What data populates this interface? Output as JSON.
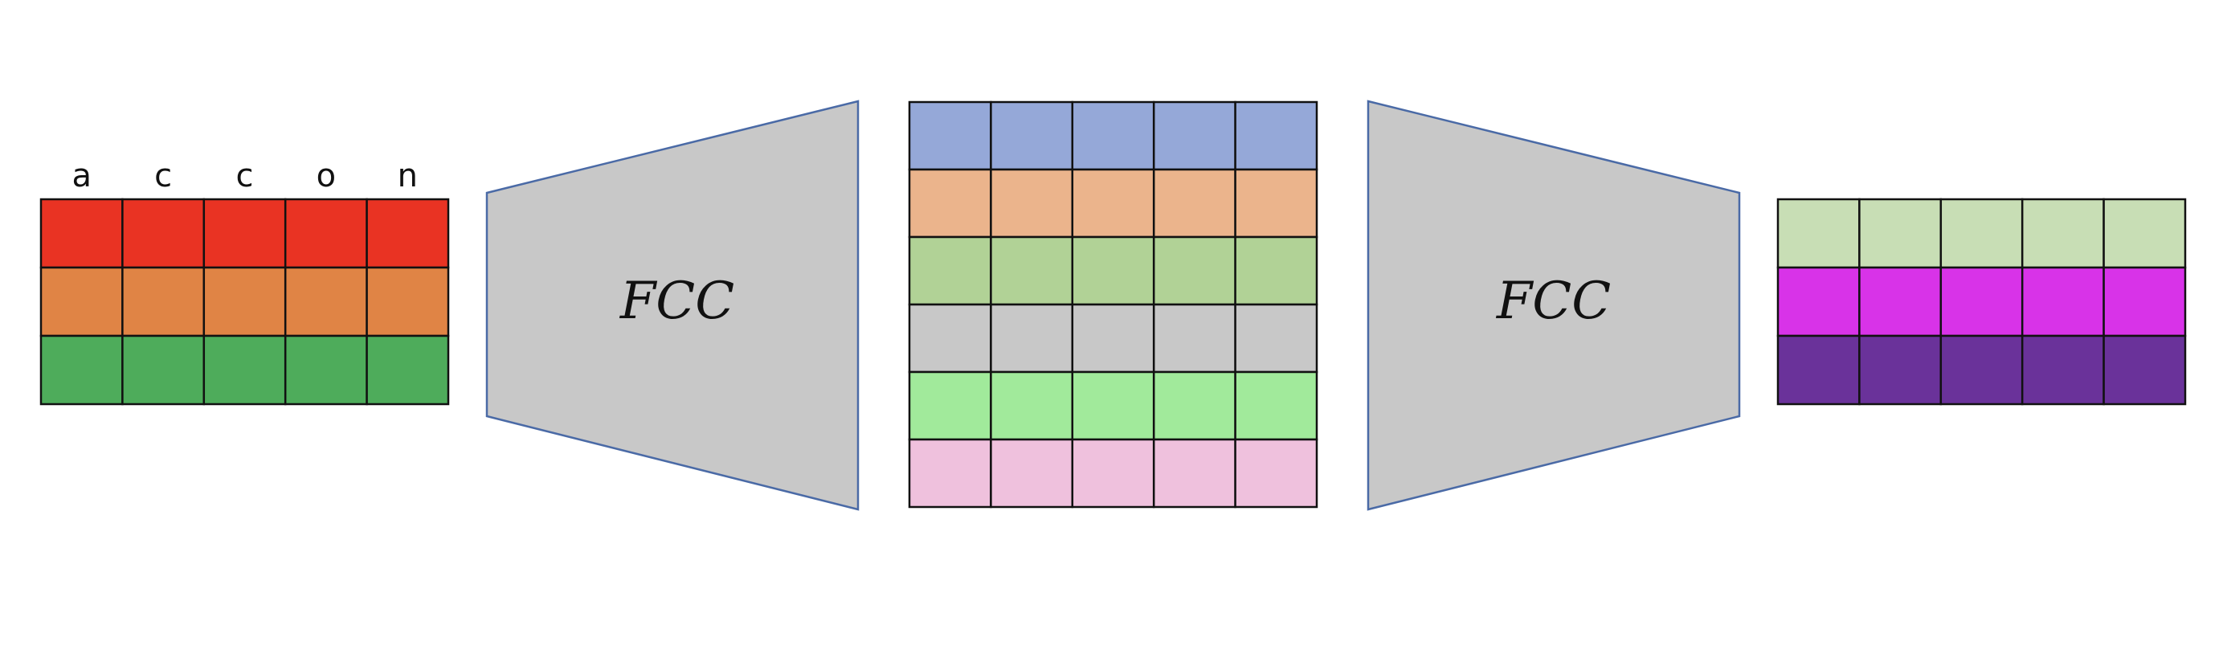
{
  "input_matrix": {
    "column_labels": [
      "a",
      "c",
      "c",
      "o",
      "n"
    ],
    "row_colors": [
      "#e93323",
      "#e08445",
      "#4eac5b"
    ]
  },
  "blocks": [
    {
      "label": "FCC",
      "shape": "expanding"
    },
    {
      "label": "FCC",
      "shape": "contracting"
    }
  ],
  "hidden_matrix": {
    "columns": 5,
    "row_colors": [
      "#95a8d8",
      "#ebb48c",
      "#b1d296",
      "#c8c8c8",
      "#a1ea9b",
      "#efc1dd"
    ]
  },
  "output_matrix": {
    "columns": 5,
    "row_colors": [
      "#c8deb5",
      "#d833e8",
      "#6a329a"
    ]
  }
}
